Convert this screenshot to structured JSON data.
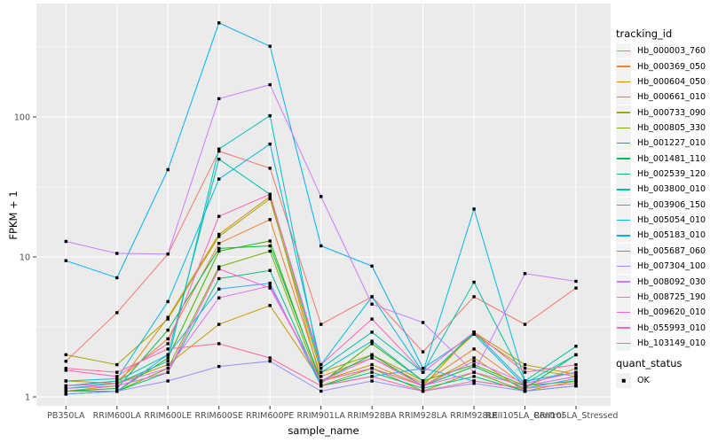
{
  "chart_data": {
    "type": "line",
    "xlabel": "sample_name",
    "ylabel": "FPKM + 1",
    "y_scale": "log10",
    "y_ticks": [
      1,
      10,
      100
    ],
    "y_minor_ticks": [
      3.1623,
      31.623,
      316.23
    ],
    "ylim_px_note": "log axis, 1 to ~600",
    "panel_bg": "#EBEBEB",
    "grid_color": "#FFFFFF",
    "tick_label_color": "#4D4D4D",
    "point_color": "#000000",
    "legend": {
      "title": "tracking_id",
      "position": "right"
    },
    "quant_legend": {
      "title": "quant_status",
      "items": [
        {
          "label": "OK",
          "marker": "black-square"
        }
      ]
    },
    "categories": [
      "PB350LA",
      "RRIM600LA",
      "RRIM600LE",
      "RRIM600SE",
      "RRIM600PE",
      "RRIM901LA",
      "RRIM928BA",
      "RRIM928LA",
      "RRIM928LE",
      "RRII105LA_Control",
      "RRII105LA_Stressed"
    ],
    "series": [
      {
        "name": "Hb_000003_760",
        "color": "#F8766D",
        "values": [
          1.8,
          4.0,
          10.5,
          57,
          43,
          3.3,
          5.2,
          2.1,
          5.2,
          3.3,
          6.0
        ]
      },
      {
        "name": "Hb_000369_050",
        "color": "#EA8331",
        "values": [
          1.2,
          1.3,
          2.6,
          12.5,
          18.5,
          1.4,
          1.9,
          1.25,
          2.2,
          1.2,
          1.6
        ]
      },
      {
        "name": "Hb_000604_050",
        "color": "#D89000",
        "values": [
          1.1,
          1.2,
          3.7,
          14.5,
          27,
          1.3,
          1.7,
          1.2,
          1.9,
          1.1,
          1.3
        ]
      },
      {
        "name": "Hb_000661_010",
        "color": "#C09B00",
        "values": [
          1.3,
          1.25,
          1.7,
          3.3,
          4.5,
          1.3,
          1.6,
          1.2,
          2.9,
          1.7,
          1.45
        ]
      },
      {
        "name": "Hb_000733_090",
        "color": "#A3A500",
        "values": [
          2.0,
          1.7,
          3.6,
          14,
          26,
          1.5,
          2.0,
          1.3,
          2.8,
          1.6,
          1.4
        ]
      },
      {
        "name": "Hb_000805_330",
        "color": "#7CAE00",
        "values": [
          1.1,
          1.1,
          1.6,
          8.5,
          11,
          1.2,
          1.6,
          1.1,
          1.5,
          1.1,
          1.2
        ]
      },
      {
        "name": "Hb_001227_010",
        "color": "#39B600",
        "values": [
          1.05,
          1.1,
          1.9,
          11,
          13,
          1.25,
          2.4,
          1.3,
          1.7,
          1.2,
          1.3
        ]
      },
      {
        "name": "Hb_001481_110",
        "color": "#00BB4E",
        "values": [
          1.1,
          1.15,
          3.0,
          11.5,
          12,
          1.3,
          2.0,
          1.2,
          1.65,
          1.15,
          2.0
        ]
      },
      {
        "name": "Hb_002539_120",
        "color": "#00BF7D",
        "values": [
          1.05,
          1.1,
          1.5,
          7.0,
          8.0,
          1.2,
          1.5,
          1.15,
          1.4,
          1.1,
          1.2
        ]
      },
      {
        "name": "Hb_003800_010",
        "color": "#00C1A3",
        "values": [
          1.2,
          1.3,
          2.0,
          50,
          28,
          1.6,
          2.9,
          1.5,
          6.6,
          1.3,
          2.3
        ]
      },
      {
        "name": "Hb_003906_150",
        "color": "#00BFC4",
        "values": [
          1.15,
          1.25,
          1.8,
          59,
          102,
          1.5,
          2.5,
          1.3,
          2.9,
          1.25,
          2.0
        ]
      },
      {
        "name": "Hb_005054_010",
        "color": "#00BAE0",
        "values": [
          1.3,
          1.35,
          4.8,
          36,
          64,
          1.7,
          5.2,
          1.5,
          22,
          1.3,
          1.5
        ]
      },
      {
        "name": "Hb_005183_010",
        "color": "#00B0F6",
        "values": [
          9.4,
          7.1,
          42,
          470,
          320,
          12,
          8.6,
          1.6,
          2.8,
          1.2,
          1.4
        ]
      },
      {
        "name": "Hb_005687_060",
        "color": "#35A2FF",
        "values": [
          1.1,
          1.1,
          2.0,
          5.9,
          6.5,
          1.2,
          1.4,
          1.6,
          1.3,
          1.15,
          1.35
        ]
      },
      {
        "name": "Hb_007304_100",
        "color": "#9590FF",
        "values": [
          1.05,
          1.1,
          1.3,
          1.65,
          1.8,
          1.1,
          1.3,
          1.1,
          1.25,
          1.1,
          1.2
        ]
      },
      {
        "name": "Hb_008092_030",
        "color": "#C77CFF",
        "values": [
          12.9,
          10.6,
          10.5,
          135,
          170,
          27,
          4.6,
          3.4,
          1.5,
          7.6,
          6.7
        ]
      },
      {
        "name": "Hb_008725_190",
        "color": "#E76BF3",
        "values": [
          1.2,
          1.25,
          1.6,
          5.1,
          6.2,
          1.3,
          1.9,
          1.2,
          1.8,
          1.25,
          1.5
        ]
      },
      {
        "name": "Hb_009620_010",
        "color": "#FA62DB",
        "values": [
          1.15,
          1.2,
          1.5,
          8.2,
          6.0,
          1.3,
          1.6,
          1.2,
          1.5,
          1.2,
          1.4
        ]
      },
      {
        "name": "Hb_055993_010",
        "color": "#FF62BC",
        "values": [
          1.55,
          1.4,
          2.4,
          19.5,
          28,
          1.7,
          3.6,
          1.5,
          2.9,
          1.5,
          1.7
        ]
      },
      {
        "name": "Hb_103149_010",
        "color": "#FF6A98",
        "values": [
          1.6,
          1.5,
          2.2,
          2.4,
          1.9,
          1.2,
          1.4,
          1.1,
          1.3,
          1.15,
          1.25
        ]
      }
    ]
  }
}
